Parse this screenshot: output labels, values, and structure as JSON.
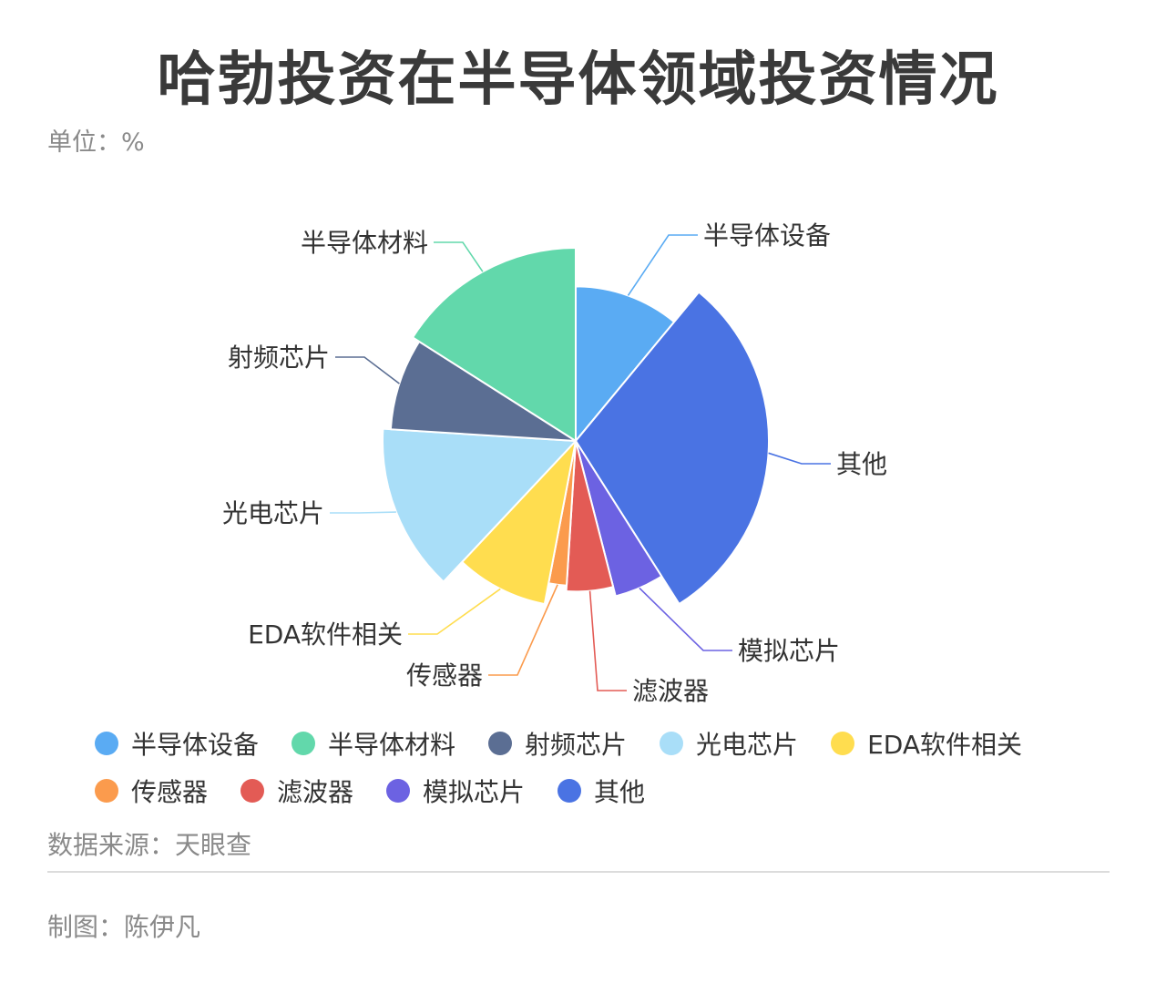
{
  "header": {
    "title": "哈勃投资在半导体领域投资情况",
    "unit": "单位：%"
  },
  "footer": {
    "source": "数据来源：天眼查",
    "author": "制图：陈伊凡"
  },
  "chart_data": {
    "type": "pie",
    "title": "哈勃投资在半导体领域投资情况",
    "unit": "%",
    "rose": "radius",
    "start_angle_deg": 90,
    "direction": "clockwise",
    "slices": [
      {
        "name": "半导体设备",
        "value": 11,
        "color": "#5aabf3",
        "radius_ratio": 0.8
      },
      {
        "name": "其他",
        "value": 30,
        "color": "#4a73e3",
        "radius_ratio": 1.0
      },
      {
        "name": "模拟芯片",
        "value": 5,
        "color": "#6c62e2",
        "radius_ratio": 0.83
      },
      {
        "name": "滤波器",
        "value": 5,
        "color": "#e35b55",
        "radius_ratio": 0.78
      },
      {
        "name": "传感器",
        "value": 2,
        "color": "#fb9b4d",
        "radius_ratio": 0.75
      },
      {
        "name": "EDA软件相关",
        "value": 9,
        "color": "#ffdd4f",
        "radius_ratio": 0.86
      },
      {
        "name": "光电芯片",
        "value": 14,
        "color": "#a9def8",
        "radius_ratio": 1.0
      },
      {
        "name": "射频芯片",
        "value": 8,
        "color": "#5b6e93",
        "radius_ratio": 0.96
      },
      {
        "name": "半导体材料",
        "value": 16,
        "color": "#62d8ab",
        "radius_ratio": 1.0
      }
    ],
    "legend": {
      "placement": "bottom",
      "order": [
        "半导体设备",
        "半导体材料",
        "射频芯片",
        "光电芯片",
        "EDA软件相关",
        "传感器",
        "滤波器",
        "模拟芯片",
        "其他"
      ]
    }
  }
}
